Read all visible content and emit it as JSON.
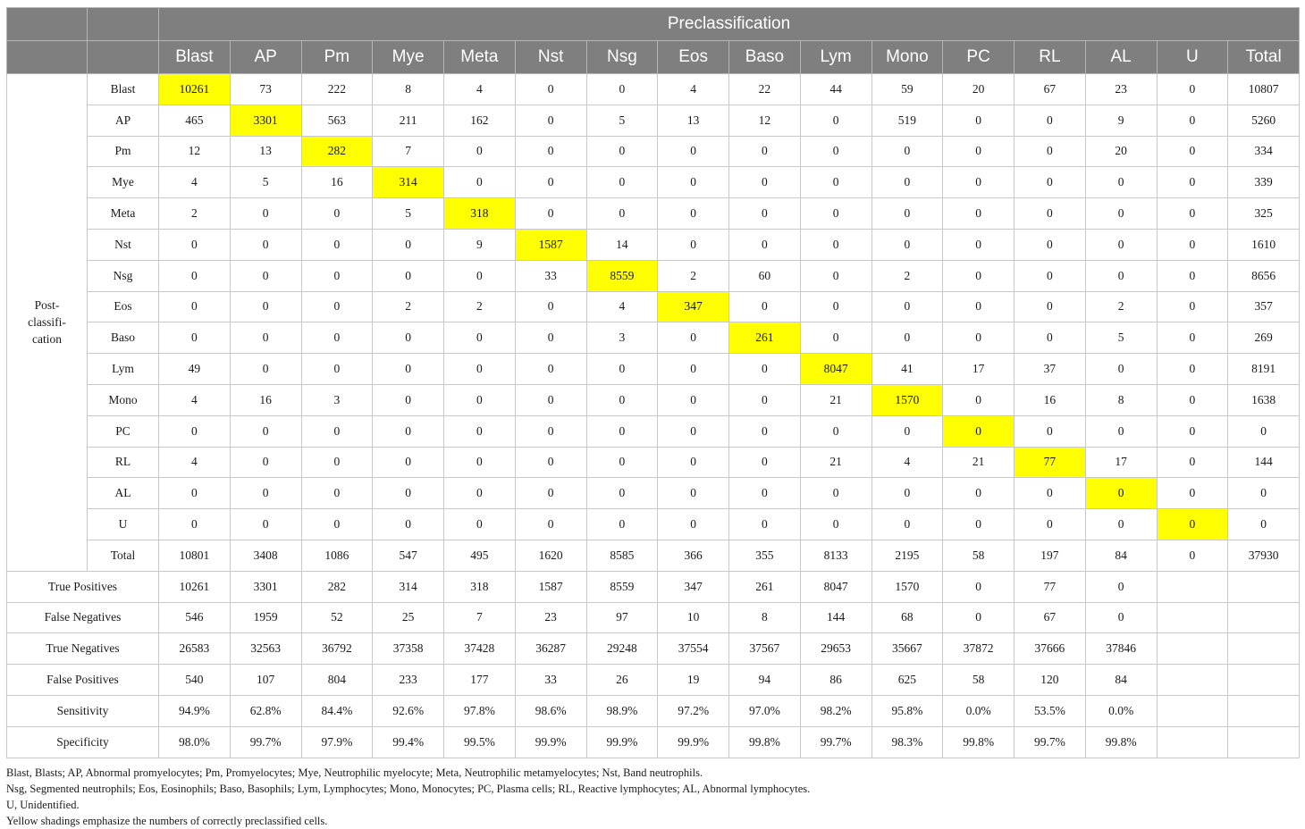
{
  "table": {
    "header_group": "Preclassification",
    "row_group_label": [
      "Post-",
      "classifi-",
      "cation"
    ],
    "columns": [
      "Blast",
      "AP",
      "Pm",
      "Mye",
      "Meta",
      "Nst",
      "Nsg",
      "Eos",
      "Baso",
      "Lym",
      "Mono",
      "PC",
      "RL",
      "AL",
      "U",
      "Total"
    ],
    "matrix_rows": [
      {
        "label": "Blast",
        "values": [
          "10261",
          "73",
          "222",
          "8",
          "4",
          "0",
          "0",
          "4",
          "22",
          "44",
          "59",
          "20",
          "67",
          "23",
          "0",
          "10807"
        ]
      },
      {
        "label": "AP",
        "values": [
          "465",
          "3301",
          "563",
          "211",
          "162",
          "0",
          "5",
          "13",
          "12",
          "0",
          "519",
          "0",
          "0",
          "9",
          "0",
          "5260"
        ]
      },
      {
        "label": "Pm",
        "values": [
          "12",
          "13",
          "282",
          "7",
          "0",
          "0",
          "0",
          "0",
          "0",
          "0",
          "0",
          "0",
          "0",
          "20",
          "0",
          "334"
        ]
      },
      {
        "label": "Mye",
        "values": [
          "4",
          "5",
          "16",
          "314",
          "0",
          "0",
          "0",
          "0",
          "0",
          "0",
          "0",
          "0",
          "0",
          "0",
          "0",
          "339"
        ]
      },
      {
        "label": "Meta",
        "values": [
          "2",
          "0",
          "0",
          "5",
          "318",
          "0",
          "0",
          "0",
          "0",
          "0",
          "0",
          "0",
          "0",
          "0",
          "0",
          "325"
        ]
      },
      {
        "label": "Nst",
        "values": [
          "0",
          "0",
          "0",
          "0",
          "9",
          "1587",
          "14",
          "0",
          "0",
          "0",
          "0",
          "0",
          "0",
          "0",
          "0",
          "1610"
        ]
      },
      {
        "label": "Nsg",
        "values": [
          "0",
          "0",
          "0",
          "0",
          "0",
          "33",
          "8559",
          "2",
          "60",
          "0",
          "2",
          "0",
          "0",
          "0",
          "0",
          "8656"
        ]
      },
      {
        "label": "Eos",
        "values": [
          "0",
          "0",
          "0",
          "2",
          "2",
          "0",
          "4",
          "347",
          "0",
          "0",
          "0",
          "0",
          "0",
          "2",
          "0",
          "357"
        ]
      },
      {
        "label": "Baso",
        "values": [
          "0",
          "0",
          "0",
          "0",
          "0",
          "0",
          "3",
          "0",
          "261",
          "0",
          "0",
          "0",
          "0",
          "5",
          "0",
          "269"
        ]
      },
      {
        "label": "Lym",
        "values": [
          "49",
          "0",
          "0",
          "0",
          "0",
          "0",
          "0",
          "0",
          "0",
          "8047",
          "41",
          "17",
          "37",
          "0",
          "0",
          "8191"
        ]
      },
      {
        "label": "Mono",
        "values": [
          "4",
          "16",
          "3",
          "0",
          "0",
          "0",
          "0",
          "0",
          "0",
          "21",
          "1570",
          "0",
          "16",
          "8",
          "0",
          "1638"
        ]
      },
      {
        "label": "PC",
        "values": [
          "0",
          "0",
          "0",
          "0",
          "0",
          "0",
          "0",
          "0",
          "0",
          "0",
          "0",
          "0",
          "0",
          "0",
          "0",
          "0"
        ]
      },
      {
        "label": "RL",
        "values": [
          "4",
          "0",
          "0",
          "0",
          "0",
          "0",
          "0",
          "0",
          "0",
          "21",
          "4",
          "21",
          "77",
          "17",
          "0",
          "144"
        ]
      },
      {
        "label": "AL",
        "values": [
          "0",
          "0",
          "0",
          "0",
          "0",
          "0",
          "0",
          "0",
          "0",
          "0",
          "0",
          "0",
          "0",
          "0",
          "0",
          "0"
        ]
      },
      {
        "label": "U",
        "values": [
          "0",
          "0",
          "0",
          "0",
          "0",
          "0",
          "0",
          "0",
          "0",
          "0",
          "0",
          "0",
          "0",
          "0",
          "0",
          "0"
        ]
      },
      {
        "label": "Total",
        "values": [
          "10801",
          "3408",
          "1086",
          "547",
          "495",
          "1620",
          "8585",
          "366",
          "355",
          "8133",
          "2195",
          "58",
          "197",
          "84",
          "0",
          "37930"
        ]
      }
    ],
    "metric_rows": [
      {
        "label": "True Positives",
        "values": [
          "10261",
          "3301",
          "282",
          "314",
          "318",
          "1587",
          "8559",
          "347",
          "261",
          "8047",
          "1570",
          "0",
          "77",
          "0",
          "",
          ""
        ]
      },
      {
        "label": "False Negatives",
        "values": [
          "546",
          "1959",
          "52",
          "25",
          "7",
          "23",
          "97",
          "10",
          "8",
          "144",
          "68",
          "0",
          "67",
          "0",
          "",
          ""
        ]
      },
      {
        "label": "True Negatives",
        "values": [
          "26583",
          "32563",
          "36792",
          "37358",
          "37428",
          "36287",
          "29248",
          "37554",
          "37567",
          "29653",
          "35667",
          "37872",
          "37666",
          "37846",
          "",
          ""
        ]
      },
      {
        "label": "False Positives",
        "values": [
          "540",
          "107",
          "804",
          "233",
          "177",
          "33",
          "26",
          "19",
          "94",
          "86",
          "625",
          "58",
          "120",
          "84",
          "",
          ""
        ]
      },
      {
        "label": "Sensitivity",
        "values": [
          "94.9%",
          "62.8%",
          "84.4%",
          "92.6%",
          "97.8%",
          "98.6%",
          "98.9%",
          "97.2%",
          "97.0%",
          "98.2%",
          "95.8%",
          "0.0%",
          "53.5%",
          "0.0%",
          "",
          ""
        ]
      },
      {
        "label": "Specificity",
        "values": [
          "98.0%",
          "99.7%",
          "97.9%",
          "99.4%",
          "99.5%",
          "99.9%",
          "99.9%",
          "99.9%",
          "99.8%",
          "99.7%",
          "98.3%",
          "99.8%",
          "99.7%",
          "99.8%",
          "",
          ""
        ]
      }
    ],
    "highlight_color": "#ffff00",
    "header_bg_color": "#7f7f7f"
  },
  "notes": [
    "Blast, Blasts; AP, Abnormal promyelocytes; Pm, Promyelocytes; Mye, Neutrophilic myelocyte; Meta, Neutrophilic metamyelocytes; Nst, Band neutrophils.",
    "Nsg, Segmented neutrophils; Eos, Eosinophils; Baso, Basophils; Lym, Lymphocytes; Mono, Monocytes; PC, Plasma cells; RL, Reactive lymphocytes; AL, Abnormal lymphocytes.",
    "U, Unidentified.",
    "Yellow shadings emphasize the numbers of correctly preclassified cells."
  ]
}
